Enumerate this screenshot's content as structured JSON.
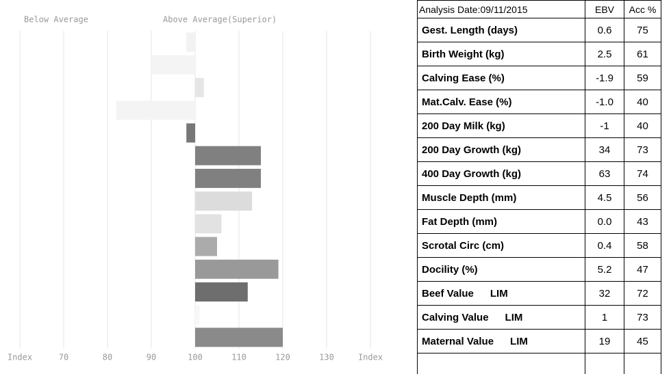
{
  "chart_data": {
    "type": "hbar",
    "annotations": [
      "Below Average",
      "Above Average(Superior)"
    ],
    "values": [
      98,
      90,
      102,
      82,
      98,
      115,
      115,
      113,
      106,
      105,
      119,
      112,
      101,
      120
    ],
    "colors": [
      "#f2f2f2",
      "#f4f4f4",
      "#e6e6e6",
      "#f4f4f4",
      "#777777",
      "#808080",
      "#808080",
      "#dcdcdc",
      "#e2e2e2",
      "#ababab",
      "#999999",
      "#6e6e6e",
      "#f7f7f7",
      "#8a8a8a"
    ],
    "baseline": 100,
    "xlim": [
      60,
      140
    ],
    "xticks": [
      {
        "value": 60,
        "label": "Index"
      },
      70,
      80,
      90,
      100,
      110,
      120,
      130,
      {
        "value": 140,
        "label": "Index"
      }
    ],
    "grid": true
  },
  "table": {
    "header": [
      "Analysis Date:09/11/2015",
      "EBV",
      "Acc %"
    ],
    "rows": [
      {
        "trait": "Gest. Length (days)",
        "ebv": "0.6",
        "acc": "75"
      },
      {
        "trait": "Birth Weight (kg)",
        "ebv": "2.5",
        "acc": "61"
      },
      {
        "trait": "Calving Ease (%)",
        "ebv": "-1.9",
        "acc": "59"
      },
      {
        "trait": "Mat.Calv. Ease (%)",
        "ebv": "-1.0",
        "acc": "40"
      },
      {
        "trait": "200 Day Milk (kg)",
        "ebv": "-1",
        "acc": "40"
      },
      {
        "trait": "200 Day Growth (kg)",
        "ebv": "34",
        "acc": "73"
      },
      {
        "trait": "400 Day Growth (kg)",
        "ebv": "63",
        "acc": "74"
      },
      {
        "trait": "Muscle Depth (mm)",
        "ebv": "4.5",
        "acc": "56"
      },
      {
        "trait": "Fat Depth (mm)",
        "ebv": "0.0",
        "acc": "43"
      },
      {
        "trait": "Scrotal Circ (cm)",
        "ebv": "0.4",
        "acc": "58"
      },
      {
        "trait": "Docility (%)",
        "ebv": "5.2",
        "acc": "47"
      },
      {
        "trait": "Beef Value",
        "breed": "LIM",
        "ebv": "32",
        "acc": "72"
      },
      {
        "trait": "Calving Value",
        "breed": "LIM",
        "ebv": "1",
        "acc": "73"
      },
      {
        "trait": "Maternal Value",
        "breed": "LIM",
        "ebv": "19",
        "acc": "45"
      }
    ]
  }
}
